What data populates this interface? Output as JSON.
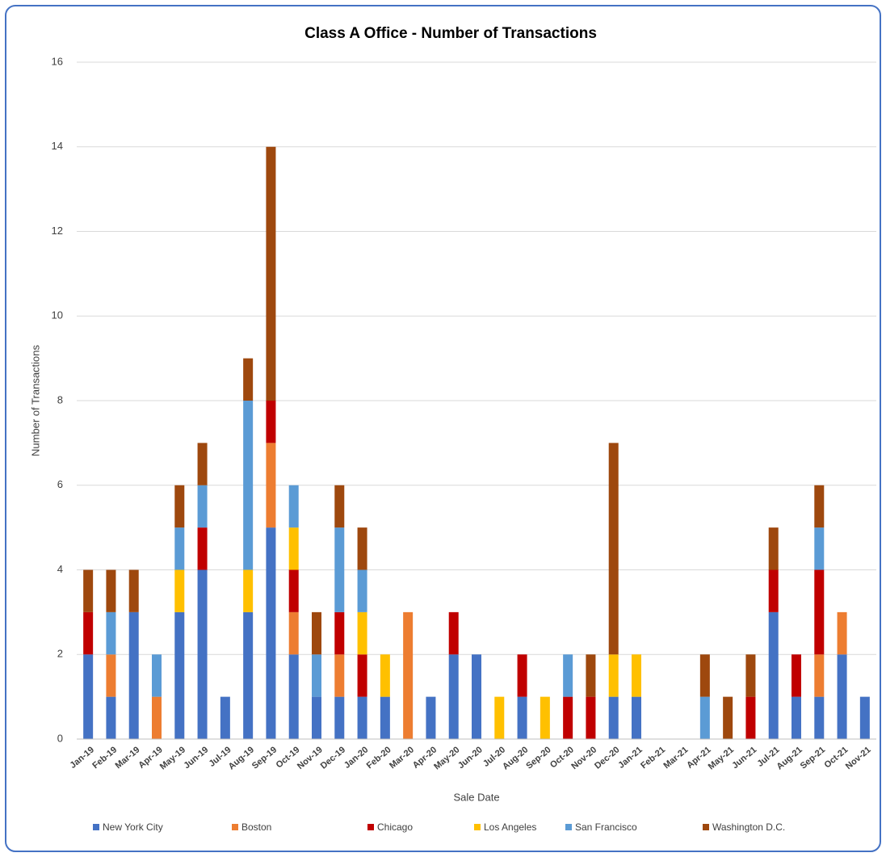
{
  "chart_data": {
    "type": "stacked_bar",
    "title": "Class A Office - Number of Transactions",
    "x_label": "Sale Date",
    "y_label": "Number of Transactions",
    "categories": [
      "Jan-19",
      "Feb-19",
      "Mar-19",
      "Apr-19",
      "May-19",
      "Jun-19",
      "Jul-19",
      "Aug-19",
      "Sep-19",
      "Oct-19",
      "Nov-19",
      "Dec-19",
      "Jan-20",
      "Feb-20",
      "Mar-20",
      "Apr-20",
      "May-20",
      "Jun-20",
      "Jul-20",
      "Aug-20",
      "Sep-20",
      "Oct-20",
      "Nov-20",
      "Dec-20",
      "Jan-21",
      "Feb-21",
      "Mar-21",
      "Apr-21",
      "May-21",
      "Jun-21",
      "Jul-21",
      "Aug-21",
      "Sep-21",
      "Oct-21",
      "Nov-21"
    ],
    "series": [
      {
        "name": "New York City",
        "color": "#4472c4",
        "values": [
          2,
          1,
          3,
          0,
          3,
          4,
          1,
          3,
          5,
          2,
          1,
          1,
          1,
          1,
          0,
          1,
          2,
          2,
          0,
          1,
          0,
          0,
          0,
          1,
          1,
          0,
          0,
          0,
          0,
          0,
          3,
          1,
          1,
          2,
          1
        ]
      },
      {
        "name": "Boston",
        "color": "#ed7d31",
        "values": [
          0,
          1,
          0,
          1,
          0,
          0,
          0,
          0,
          2,
          1,
          0,
          1,
          0,
          0,
          3,
          0,
          0,
          0,
          0,
          0,
          0,
          0,
          0,
          0,
          0,
          0,
          0,
          0,
          0,
          0,
          0,
          0,
          1,
          1,
          0
        ]
      },
      {
        "name": "Chicago",
        "color": "#c00000",
        "values": [
          1,
          0,
          0,
          0,
          0,
          1,
          0,
          0,
          1,
          1,
          0,
          1,
          1,
          0,
          0,
          0,
          1,
          0,
          0,
          1,
          0,
          1,
          1,
          0,
          0,
          0,
          0,
          0,
          0,
          1,
          1,
          1,
          2,
          0,
          0
        ]
      },
      {
        "name": "Los Angeles",
        "color": "#ffc000",
        "values": [
          0,
          0,
          0,
          0,
          1,
          0,
          0,
          1,
          0,
          1,
          0,
          0,
          1,
          1,
          0,
          0,
          0,
          0,
          1,
          0,
          1,
          0,
          0,
          1,
          1,
          0,
          0,
          0,
          0,
          0,
          0,
          0,
          0,
          0,
          0
        ]
      },
      {
        "name": "San Francisco",
        "color": "#5b9bd5",
        "values": [
          0,
          1,
          0,
          1,
          1,
          1,
          0,
          4,
          0,
          1,
          1,
          2,
          1,
          0,
          0,
          0,
          0,
          0,
          0,
          0,
          0,
          1,
          0,
          0,
          0,
          0,
          0,
          1,
          0,
          0,
          0,
          0,
          1,
          0,
          0
        ]
      },
      {
        "name": "Washington D.C.",
        "color": "#9e480e",
        "values": [
          1,
          1,
          1,
          0,
          1,
          1,
          0,
          1,
          6,
          0,
          1,
          1,
          1,
          0,
          0,
          0,
          0,
          0,
          0,
          0,
          0,
          0,
          1,
          5,
          0,
          0,
          0,
          1,
          1,
          1,
          1,
          0,
          1,
          0,
          0
        ]
      }
    ],
    "ylim": [
      0,
      16
    ],
    "yticks": [
      0,
      2,
      4,
      6,
      8,
      10,
      12,
      14,
      16
    ],
    "grid": true,
    "legend": "bottom"
  }
}
